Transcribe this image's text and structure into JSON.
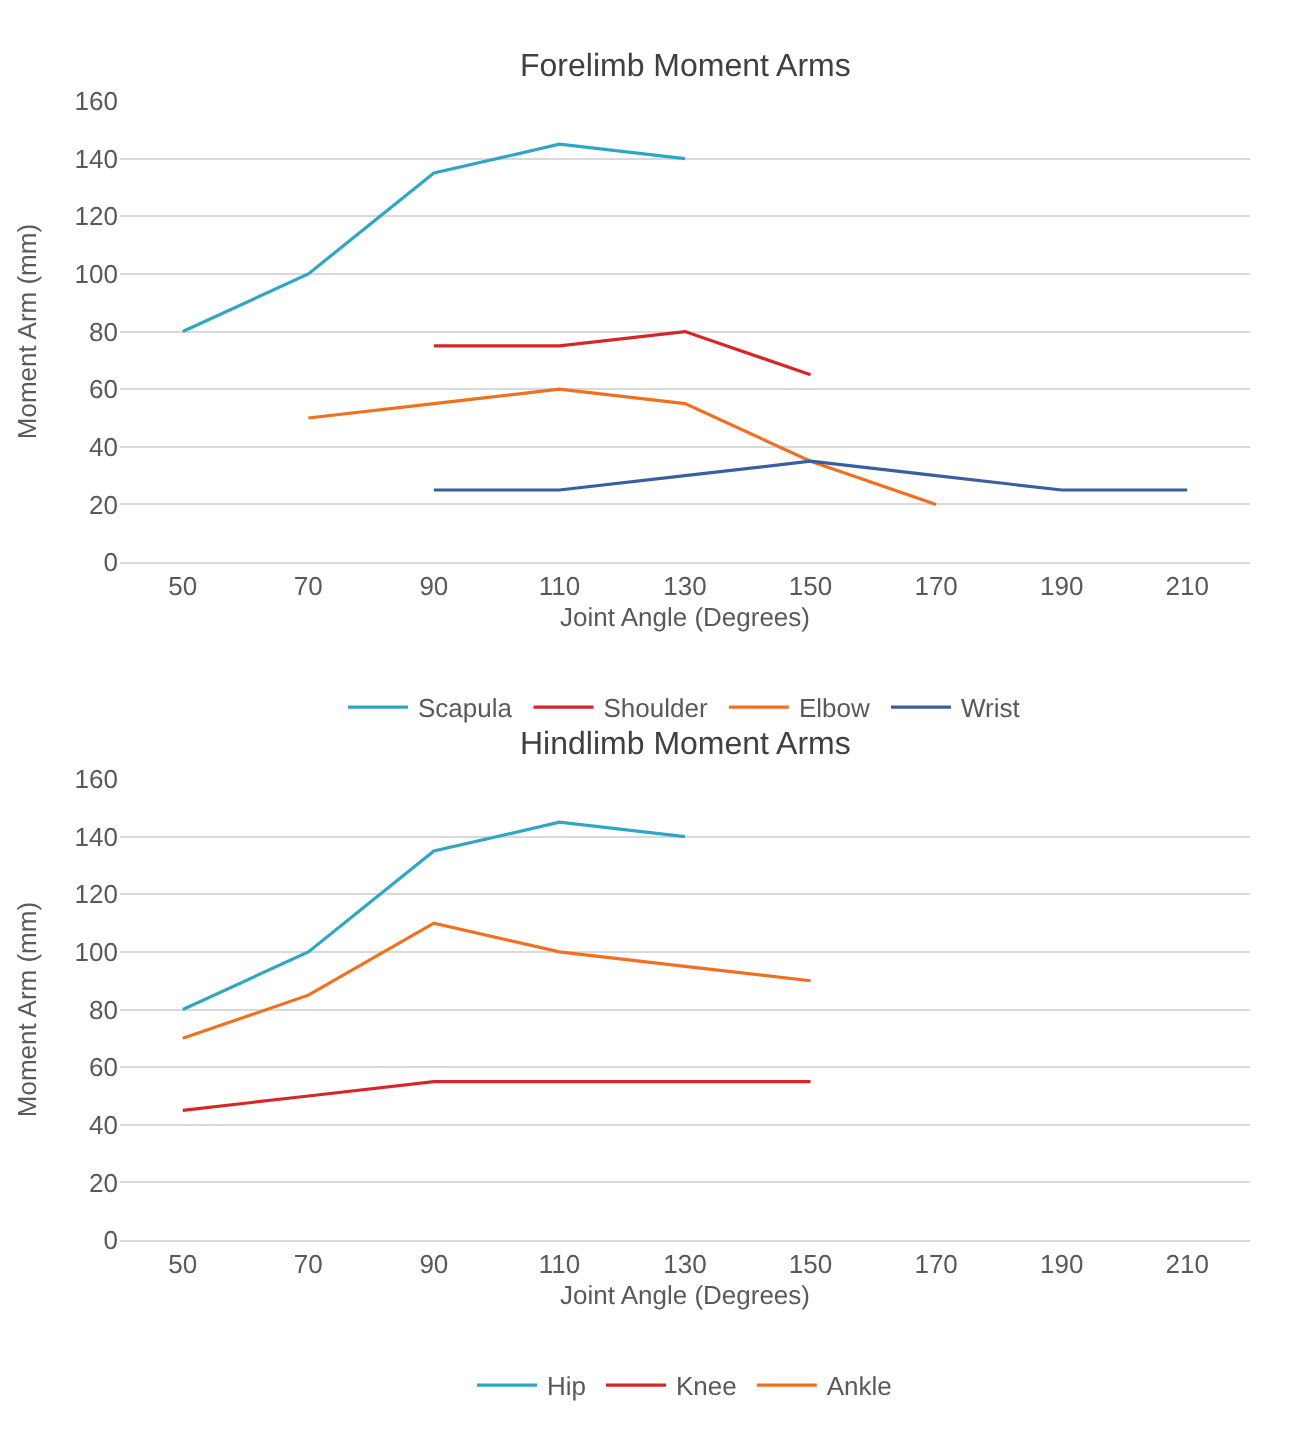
{
  "chart_data": [
    {
      "type": "line",
      "title": "Forelimb Moment Arms",
      "xlabel": "Joint Angle (Degrees)",
      "ylabel": "Moment Arm (mm)",
      "categories": [
        "50",
        "70",
        "90",
        "110",
        "130",
        "150",
        "170",
        "190",
        "210"
      ],
      "series": [
        {
          "name": "Scapula",
          "color": "#2fa6c4",
          "values": [
            80,
            100,
            135,
            145,
            140,
            null,
            null,
            null,
            null
          ]
        },
        {
          "name": "Shoulder",
          "color": "#d62728",
          "values": [
            null,
            null,
            75,
            75,
            80,
            65,
            null,
            null,
            null
          ]
        },
        {
          "name": "Elbow",
          "color": "#f07020",
          "values": [
            null,
            50,
            55,
            60,
            55,
            35,
            20,
            null,
            null
          ]
        },
        {
          "name": "Wrist",
          "color": "#3a5fa0",
          "values": [
            null,
            null,
            25,
            25,
            30,
            35,
            30,
            25,
            25
          ]
        }
      ],
      "ylim": [
        0,
        160
      ],
      "yticks": [
        0,
        20,
        40,
        60,
        80,
        100,
        120,
        140,
        160
      ],
      "grid": "y",
      "legend": "bottom",
      "marker": "none",
      "line_style": "solid"
    },
    {
      "type": "line",
      "title": "Hindlimb Moment Arms",
      "xlabel": "Joint Angle (Degrees)",
      "ylabel": "Moment Arm (mm)",
      "categories": [
        "50",
        "70",
        "90",
        "110",
        "130",
        "150",
        "170",
        "190",
        "210"
      ],
      "series": [
        {
          "name": "Hip",
          "color": "#2fa6c4",
          "values": [
            80,
            100,
            135,
            145,
            140,
            null,
            null,
            null,
            null
          ]
        },
        {
          "name": "Knee",
          "color": "#d62728",
          "values": [
            45,
            50,
            55,
            55,
            55,
            55,
            null,
            null,
            null
          ]
        },
        {
          "name": "Ankle",
          "color": "#f07020",
          "values": [
            70,
            85,
            110,
            100,
            95,
            90,
            null,
            null,
            null
          ]
        }
      ],
      "ylim": [
        0,
        160
      ],
      "yticks": [
        0,
        20,
        40,
        60,
        80,
        100,
        120,
        140,
        160
      ],
      "grid": "y",
      "legend": "bottom",
      "marker": "none",
      "line_style": "solid"
    }
  ]
}
